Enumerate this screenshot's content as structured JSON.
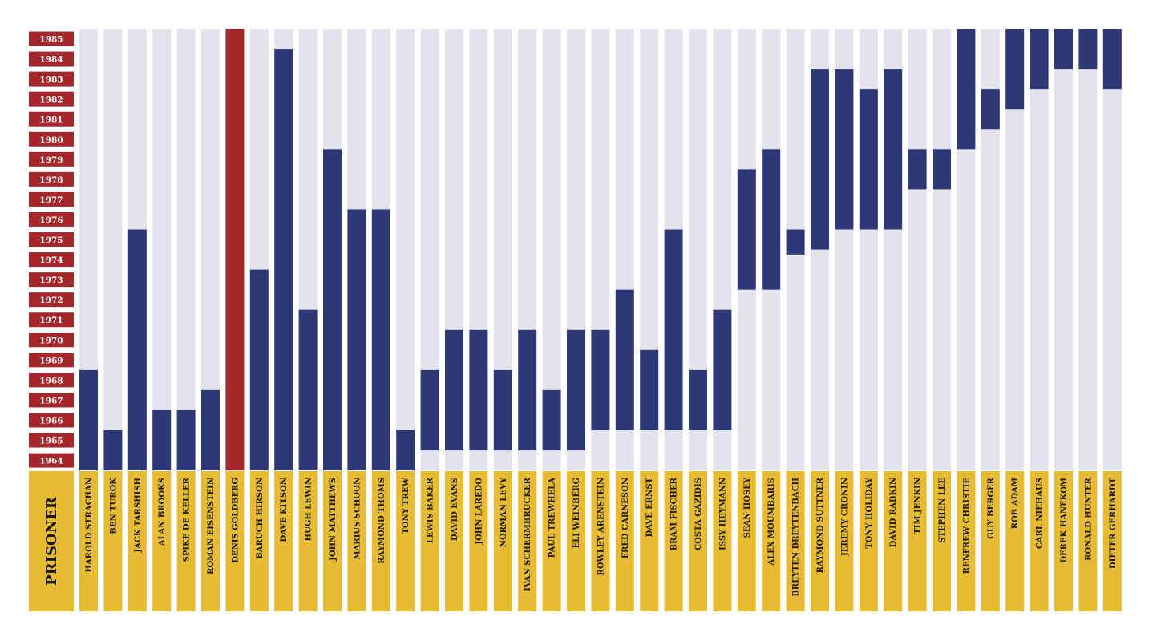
{
  "chart_data": {
    "type": "bar",
    "orientation": "vertical-range",
    "years": [
      1985,
      1984,
      1983,
      1982,
      1981,
      1980,
      1979,
      1978,
      1977,
      1976,
      1975,
      1974,
      1973,
      1972,
      1971,
      1970,
      1969,
      1968,
      1967,
      1966,
      1965,
      1964
    ],
    "ylim": [
      1964,
      1985
    ],
    "header_label": "PRISONER",
    "colors": {
      "track": "#e3e3ee",
      "bar": "#2e3874",
      "highlight": "#a3272b",
      "year_label_bg": "#a3272b",
      "name_label_bg": "#e8bb35"
    },
    "prisoners": [
      {
        "name": "HAROLD STRACHAN",
        "start": 1964,
        "end": 1968
      },
      {
        "name": "BEN TUROK",
        "start": 1964,
        "end": 1965
      },
      {
        "name": "JACK TARSHISH",
        "start": 1964,
        "end": 1975
      },
      {
        "name": "ALAN BROOKS",
        "start": 1964,
        "end": 1966
      },
      {
        "name": "SPIKE DE KELLER",
        "start": 1964,
        "end": 1966
      },
      {
        "name": "ROMAN EISENSTEIN",
        "start": 1964,
        "end": 1967
      },
      {
        "name": "DENIS GOLDBERG",
        "start": 1964,
        "end": 1985,
        "highlight": true
      },
      {
        "name": "BARUCH HIRSON",
        "start": 1964,
        "end": 1973
      },
      {
        "name": "DAVE KITSON",
        "start": 1964,
        "end": 1984
      },
      {
        "name": "HUGH LEWIN",
        "start": 1964,
        "end": 1971
      },
      {
        "name": "JOHN MATTHEWS",
        "start": 1964,
        "end": 1979
      },
      {
        "name": "MARIUS SCHOON",
        "start": 1964,
        "end": 1976
      },
      {
        "name": "RAYMOND THOMS",
        "start": 1964,
        "end": 1976
      },
      {
        "name": "TONY TREW",
        "start": 1964,
        "end": 1965
      },
      {
        "name": "LEWIS BAKER",
        "start": 1965,
        "end": 1968
      },
      {
        "name": "DAVID EVANS",
        "start": 1965,
        "end": 1970
      },
      {
        "name": "JOHN LAREDO",
        "start": 1965,
        "end": 1970
      },
      {
        "name": "NORMAN LEVY",
        "start": 1965,
        "end": 1968
      },
      {
        "name": "IVAN SCHERMBRUCKER",
        "start": 1965,
        "end": 1970
      },
      {
        "name": "PAUL TREWHELA",
        "start": 1965,
        "end": 1967
      },
      {
        "name": "ELI WEINBERG",
        "start": 1965,
        "end": 1970
      },
      {
        "name": "ROWLEY ARENSTEIN",
        "start": 1966,
        "end": 1970
      },
      {
        "name": "FRED CARNESON",
        "start": 1966,
        "end": 1972
      },
      {
        "name": "DAVE ERNST",
        "start": 1966,
        "end": 1969
      },
      {
        "name": "BRAM FISCHER",
        "start": 1966,
        "end": 1975
      },
      {
        "name": "COSTA GAZIDIS",
        "start": 1966,
        "end": 1968
      },
      {
        "name": "ISSY HEYMANN",
        "start": 1966,
        "end": 1971
      },
      {
        "name": "SEAN HOSEY",
        "start": 1973,
        "end": 1978
      },
      {
        "name": "ALEX MOUMBARIS",
        "start": 1973,
        "end": 1979
      },
      {
        "name": "BREYTEN BREYTENBACH",
        "start": 1974.75,
        "end": 1975
      },
      {
        "name": "RAYMOND SUTTNER",
        "start": 1975,
        "end": 1983
      },
      {
        "name": "JEREMY CRONIN",
        "start": 1976,
        "end": 1983
      },
      {
        "name": "TONY HOLIDAY",
        "start": 1976,
        "end": 1982
      },
      {
        "name": "DAVID RABKIN",
        "start": 1976,
        "end": 1983
      },
      {
        "name": "TIM JENKIN",
        "start": 1978,
        "end": 1979
      },
      {
        "name": "STEPHEN LEE",
        "start": 1978,
        "end": 1979
      },
      {
        "name": "RENFREW CHRISTIE",
        "start": 1980,
        "end": 1985
      },
      {
        "name": "GUY BERGER",
        "start": 1981,
        "end": 1982
      },
      {
        "name": "ROB ADAM",
        "start": 1982,
        "end": 1985
      },
      {
        "name": "CARL NIEHAUS",
        "start": 1983,
        "end": 1985
      },
      {
        "name": "DEREK HANEKOM",
        "start": 1984,
        "end": 1985
      },
      {
        "name": "RONALD HUNTER",
        "start": 1984,
        "end": 1985
      },
      {
        "name": "DIETER GERHARDT",
        "start": 1983,
        "end": 1985
      }
    ]
  }
}
